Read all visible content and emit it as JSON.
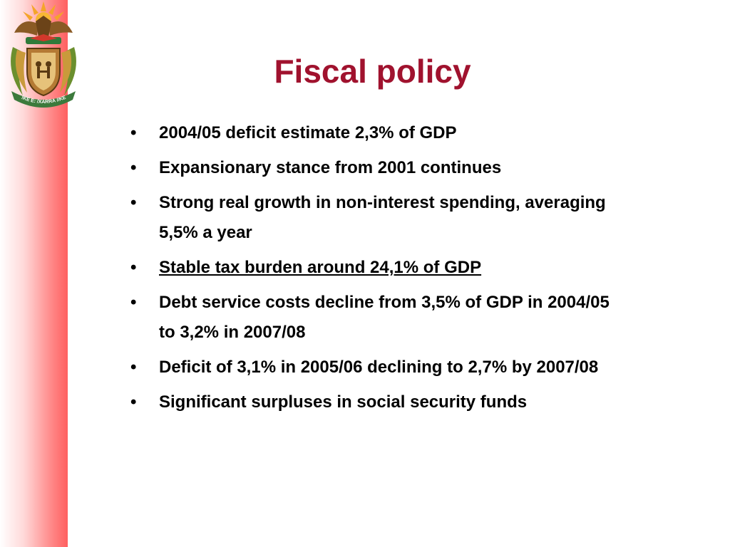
{
  "slide": {
    "title": "Fiscal policy",
    "bullet_symbol": "•",
    "bullets": [
      "2004/05 deficit estimate 2,3% of GDP",
      "Expansionary stance from 2001 continues",
      "Strong real growth in non-interest spending, averaging 5,5% a year",
      "Stable tax burden around 24,1% of GDP",
      "Debt service costs decline from 3,5% of GDP in 2004/05 to 3,2% in 2007/08",
      "Deficit of 3,1% in 2005/06 declining to 2,7% by 2007/08",
      "Significant surpluses in social security funds"
    ],
    "emblem_motto": "!KE E: /XARRA //KE"
  },
  "colors": {
    "title": "#a0122e",
    "side_bar": "#ff5f5f",
    "text": "#000000"
  },
  "icons": {
    "emblem": "south-africa-coat-of-arms"
  }
}
